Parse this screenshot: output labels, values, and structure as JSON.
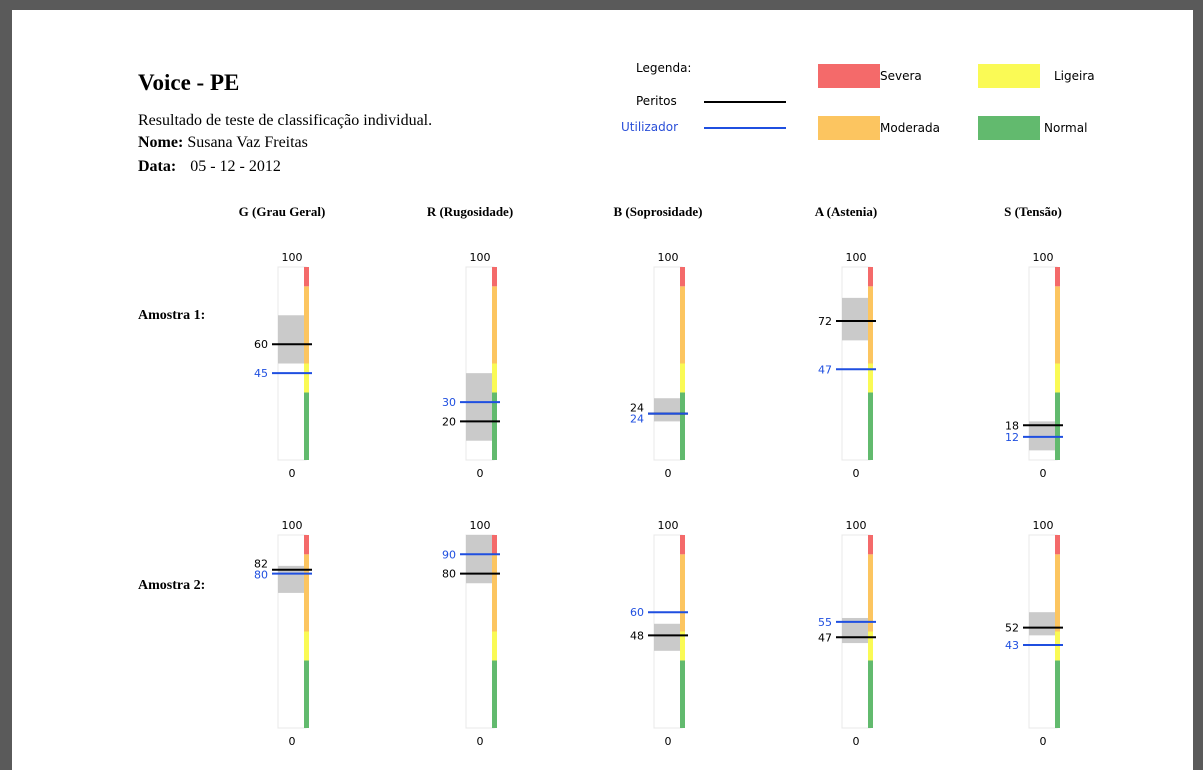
{
  "header": {
    "title": "Voice - PE",
    "subtitle": "Resultado de teste de classificação individual.",
    "name_label": "Nome:",
    "name_value": "Susana Vaz Freitas",
    "date_label": "Data:",
    "date_value": "05 - 12 - 2012"
  },
  "legend": {
    "heading": "Legenda:",
    "experts_label": "Peritos",
    "user_label": "Utilizador",
    "severe_label": "Severa",
    "slight_label": "Ligeira",
    "moderate_label": "Moderada",
    "normal_label": "Normal"
  },
  "colors": {
    "severe": "#f46a6a",
    "moderate": "#fcc560",
    "slight": "#fafa55",
    "normal": "#62ba6e",
    "experts": "#000000",
    "user": "#1f4fe0",
    "range": "#c4c4c4"
  },
  "rows": [
    {
      "label": "Amostra 1:"
    },
    {
      "label": "Amostra 2:"
    }
  ],
  "chart_data": {
    "type": "bar",
    "ylim": [
      0,
      100
    ],
    "y_ticks": [
      "100",
      "0"
    ],
    "severity_bands": [
      {
        "name": "Normal",
        "from": 0,
        "to": 35
      },
      {
        "name": "Ligeira",
        "from": 35,
        "to": 50
      },
      {
        "name": "Moderada",
        "from": 50,
        "to": 90
      },
      {
        "name": "Severa",
        "from": 90,
        "to": 100
      }
    ],
    "categories": [
      "G (Grau Geral)",
      "R (Rugosidade)",
      "B (Soprosidade)",
      "A (Astenia)",
      "S (Tensão)"
    ],
    "samples": [
      "Amostra 1:",
      "Amostra 2:"
    ],
    "series": [
      {
        "name": "Peritos",
        "values": [
          [
            60,
            20,
            24,
            72,
            18
          ],
          [
            82,
            80,
            48,
            47,
            52
          ]
        ]
      },
      {
        "name": "Utilizador",
        "values": [
          [
            45,
            30,
            24,
            47,
            12
          ],
          [
            80,
            90,
            60,
            55,
            43
          ]
        ]
      }
    ],
    "expert_range": [
      [
        [
          50,
          75
        ],
        [
          10,
          45
        ],
        [
          20,
          32
        ],
        [
          62,
          84
        ],
        [
          5,
          20
        ]
      ],
      [
        [
          70,
          84
        ],
        [
          75,
          100
        ],
        [
          40,
          54
        ],
        [
          44,
          57
        ],
        [
          48,
          60
        ]
      ]
    ]
  }
}
